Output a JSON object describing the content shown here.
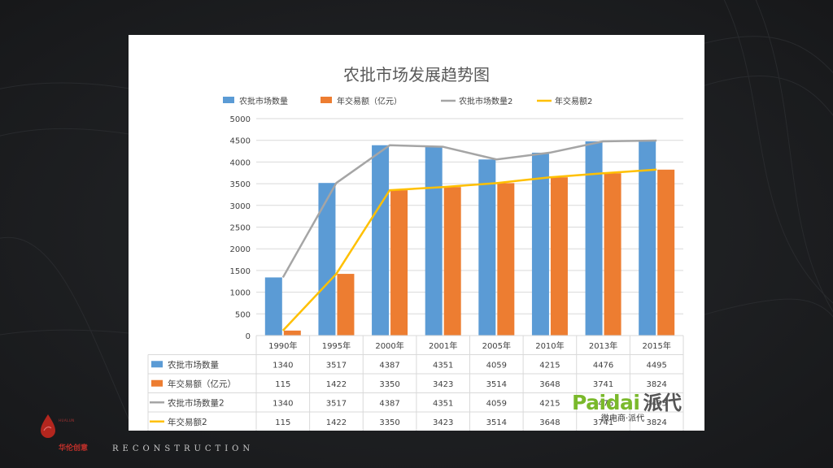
{
  "chart_data": {
    "type": "bar",
    "title": "农批市场发展趋势图",
    "categories": [
      "1990年",
      "1995年",
      "2000年",
      "2001年",
      "2005年",
      "2010年",
      "2013年",
      "2015年"
    ],
    "series": [
      {
        "name": "农批市场数量",
        "kind": "bar",
        "color": "#5b9bd5",
        "values": [
          1340,
          3517,
          4387,
          4351,
          4059,
          4215,
          4476,
          4495
        ]
      },
      {
        "name": "年交易额（亿元）",
        "kind": "bar",
        "color": "#ed7d31",
        "values": [
          115,
          1422,
          3350,
          3423,
          3514,
          3648,
          3741,
          3824
        ]
      },
      {
        "name": "农批市场数量2",
        "kind": "line",
        "color": "#a5a5a5",
        "values": [
          1340,
          3517,
          4387,
          4351,
          4059,
          4215,
          4476,
          4495
        ]
      },
      {
        "name": "年交易额2",
        "kind": "line",
        "color": "#ffc000",
        "values": [
          115,
          1422,
          3350,
          3423,
          3514,
          3648,
          3741,
          3824
        ]
      }
    ],
    "yticks": [
      "0",
      "500",
      "1000",
      "1500",
      "2000",
      "2500",
      "3000",
      "3500",
      "4000",
      "4500",
      "5000"
    ],
    "ylim": [
      0,
      5000
    ],
    "grid": true,
    "legend": "top",
    "data_table": true
  },
  "watermark": {
    "logo": "Paidai",
    "logo_cn": "派代",
    "subtitle": "微电商·派代"
  },
  "brand": {
    "small_en": "HUALUN",
    "cn": "华伦创意",
    "tagline": "RECONSTRUCTION"
  },
  "colors": {
    "background": "#1e2023",
    "card": "#ffffff"
  }
}
